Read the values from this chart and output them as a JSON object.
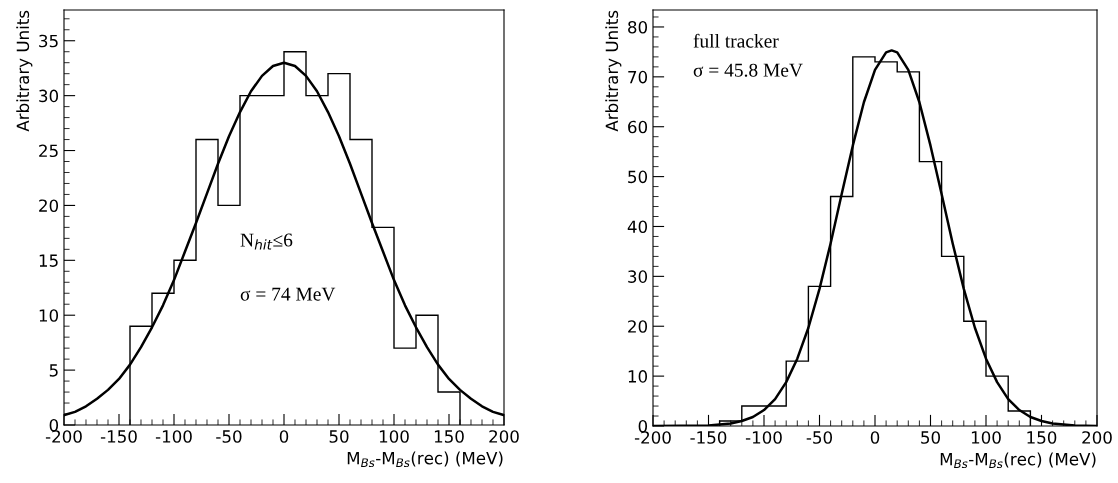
{
  "chart_data": [
    {
      "type": "histogram",
      "xlabel": "M$_{Bs}$-M$_{Bs}$(rec) (MeV)",
      "ylabel": "Arbitrary Units",
      "annotations": [
        "N$_{hit}$≤6",
        "σ = 74 MeV"
      ],
      "bins": [
        -140,
        -120,
        -100,
        -80,
        -60,
        -40,
        -20,
        0,
        20,
        40,
        60,
        80,
        100,
        120,
        140,
        160
      ],
      "values": [
        9,
        12,
        15,
        26,
        20,
        30,
        30,
        34,
        30,
        32,
        26,
        18,
        7,
        10,
        3
      ],
      "color": "#000000",
      "series": [
        {
          "type": "line",
          "color": "#000000",
          "x": [
            -200,
            -190,
            -180,
            -170,
            -160,
            -150,
            -140,
            -130,
            -120,
            -110,
            -100,
            -90,
            -80,
            -70,
            -60,
            -50,
            -40,
            -30,
            -20,
            -10,
            0,
            10,
            20,
            30,
            40,
            50,
            60,
            70,
            80,
            90,
            100,
            110,
            120,
            130,
            140,
            150,
            160,
            170,
            180,
            190,
            200
          ],
          "values": [
            0.9,
            1.2,
            1.7,
            2.4,
            3.2,
            4.2,
            5.5,
            7.1,
            8.9,
            10.9,
            13.2,
            15.8,
            18.4,
            21.1,
            23.8,
            26.3,
            28.5,
            30.4,
            31.8,
            32.7,
            33,
            32.7,
            31.8,
            30.4,
            28.5,
            26.3,
            23.8,
            21.1,
            18.4,
            15.8,
            13.2,
            10.9,
            8.9,
            7.1,
            5.5,
            4.2,
            3.2,
            2.4,
            1.7,
            1.2,
            0.9
          ]
        }
      ],
      "xlim": [
        -200,
        200
      ],
      "xticks": [
        -200,
        -150,
        -100,
        -50,
        0,
        50,
        100,
        150,
        200
      ],
      "ylim": [
        0,
        37.8
      ],
      "yticks": [
        0,
        5,
        10,
        15,
        20,
        25,
        30,
        35
      ],
      "grid": false,
      "legend": false
    },
    {
      "type": "histogram",
      "xlabel": "M$_{Bs}$-M$_{Bs}$(rec) (MeV)",
      "ylabel": "Arbitrary Units",
      "annotations": [
        "full tracker",
        "σ = 45.8 MeV"
      ],
      "bins": [
        -140,
        -120,
        -100,
        -80,
        -60,
        -40,
        -20,
        0,
        20,
        40,
        60,
        80,
        100,
        120,
        140
      ],
      "values": [
        1,
        4,
        4,
        13,
        28,
        46,
        74,
        73,
        71,
        53,
        34,
        21,
        10,
        3
      ],
      "color": "#000000",
      "series": [
        {
          "type": "line",
          "color": "#000000",
          "x": [
            -200,
            -150,
            -140,
            -130,
            -120,
            -110,
            -100,
            -90,
            -80,
            -70,
            -60,
            -50,
            -40,
            -30,
            -20,
            -10,
            0,
            10,
            15,
            20,
            30,
            40,
            50,
            60,
            70,
            80,
            90,
            100,
            110,
            120,
            130,
            140,
            150,
            160,
            170,
            180,
            200
          ],
          "values": [
            0,
            0.1,
            0.3,
            0.5,
            1,
            1.8,
            3.2,
            5.4,
            8.8,
            13.5,
            19.7,
            27.5,
            36.6,
            46.5,
            56.2,
            64.9,
            71.4,
            74.9,
            75.3,
            74.9,
            71.4,
            64.9,
            56.2,
            46.5,
            36.6,
            27.5,
            19.7,
            13.5,
            8.8,
            5.4,
            3.2,
            1.8,
            1,
            0.5,
            0.3,
            0.1,
            0
          ]
        }
      ],
      "xlim": [
        -200,
        200
      ],
      "xticks": [
        -200,
        -150,
        -100,
        -50,
        0,
        50,
        100,
        150,
        200
      ],
      "ylim": [
        0,
        83.4
      ],
      "yticks": [
        0,
        10,
        20,
        30,
        40,
        50,
        60,
        70,
        80
      ],
      "grid": false,
      "legend": false
    }
  ]
}
